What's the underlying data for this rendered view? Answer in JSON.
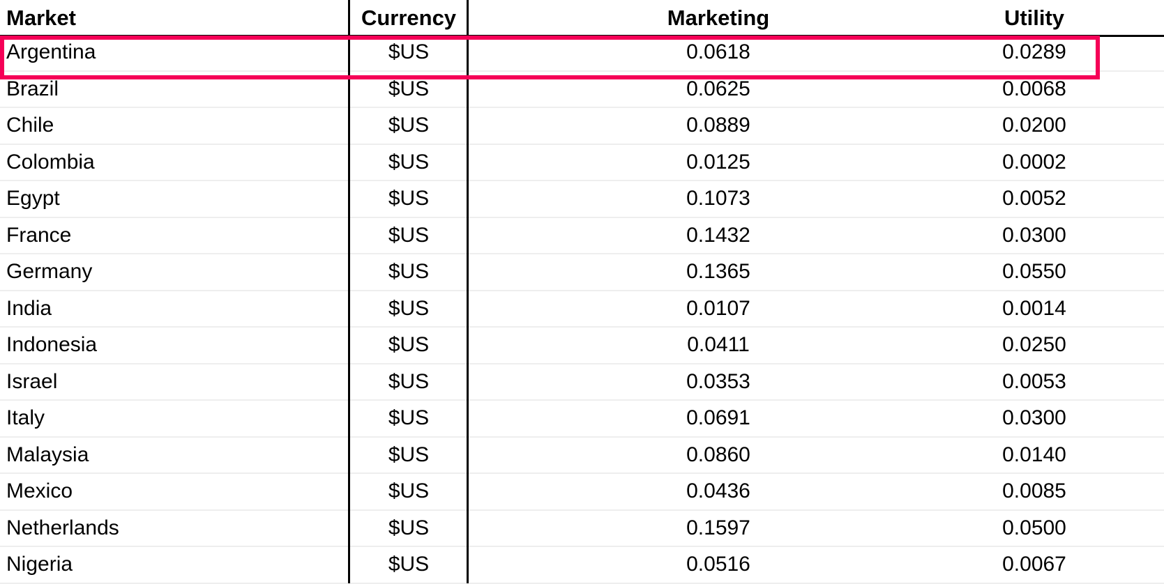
{
  "table": {
    "columns": {
      "market": "Market",
      "currency": "Currency",
      "marketing": "Marketing",
      "utility": "Utility"
    },
    "rows": [
      {
        "market": "Argentina",
        "currency": "$US",
        "marketing": "0.0618",
        "utility": "0.0289"
      },
      {
        "market": "Brazil",
        "currency": "$US",
        "marketing": "0.0625",
        "utility": "0.0068"
      },
      {
        "market": "Chile",
        "currency": "$US",
        "marketing": "0.0889",
        "utility": "0.0200"
      },
      {
        "market": "Colombia",
        "currency": "$US",
        "marketing": "0.0125",
        "utility": "0.0002"
      },
      {
        "market": "Egypt",
        "currency": "$US",
        "marketing": "0.1073",
        "utility": "0.0052"
      },
      {
        "market": "France",
        "currency": "$US",
        "marketing": "0.1432",
        "utility": "0.0300"
      },
      {
        "market": "Germany",
        "currency": "$US",
        "marketing": "0.1365",
        "utility": "0.0550"
      },
      {
        "market": "India",
        "currency": "$US",
        "marketing": "0.0107",
        "utility": "0.0014"
      },
      {
        "market": "Indonesia",
        "currency": "$US",
        "marketing": "0.0411",
        "utility": "0.0250"
      },
      {
        "market": "Israel",
        "currency": "$US",
        "marketing": "0.0353",
        "utility": "0.0053"
      },
      {
        "market": "Italy",
        "currency": "$US",
        "marketing": "0.0691",
        "utility": "0.0300"
      },
      {
        "market": "Malaysia",
        "currency": "$US",
        "marketing": "0.0860",
        "utility": "0.0140"
      },
      {
        "market": "Mexico",
        "currency": "$US",
        "marketing": "0.0436",
        "utility": "0.0085"
      },
      {
        "market": "Netherlands",
        "currency": "$US",
        "marketing": "0.1597",
        "utility": "0.0500"
      },
      {
        "market": "Nigeria",
        "currency": "$US",
        "marketing": "0.0516",
        "utility": "0.0067"
      }
    ],
    "highlight": {
      "row": "Argentina",
      "color": "#f50057"
    }
  }
}
